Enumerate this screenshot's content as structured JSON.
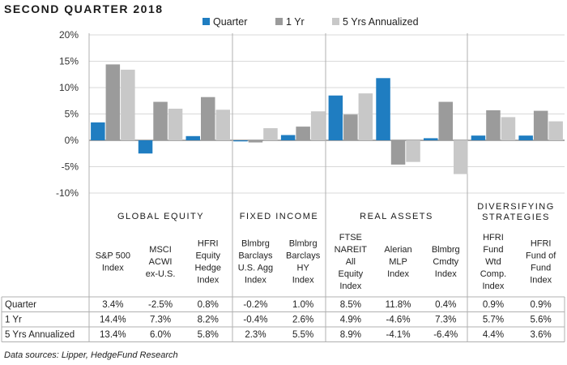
{
  "page_title": "SECOND QUARTER 2018",
  "source_note": "Data sources: Lipper, HedgeFund Research",
  "colors": {
    "quarter": "#1F7DC1",
    "one_yr": "#9B9B9B",
    "five_yr": "#C8C8C8",
    "grid": "#d9d9d9",
    "axis": "#555555"
  },
  "chart_data": {
    "type": "bar",
    "title": "SECOND QUARTER 2018",
    "y_ticks": [
      "20%",
      "15%",
      "10%",
      "5%",
      "0%",
      "-5%",
      "-10%"
    ],
    "ylim": [
      -10,
      20
    ],
    "legend_position": "top",
    "groups": [
      {
        "label": "GLOBAL EQUITY",
        "lines": [
          "GLOBAL EQUITY"
        ]
      },
      {
        "label": "FIXED INCOME",
        "lines": [
          "FIXED INCOME"
        ]
      },
      {
        "label": "REAL ASSETS",
        "lines": [
          "REAL ASSETS"
        ]
      },
      {
        "label": "DIVERSIFYING STRATEGIES",
        "lines": [
          "DIVERSIFYING",
          "STRATEGIES"
        ]
      }
    ],
    "categories": [
      {
        "label": "S&P 500 Index",
        "lines": [
          "S&P 500",
          "Index"
        ],
        "group": 0
      },
      {
        "label": "MSCI ACWI ex-U.S.",
        "lines": [
          "MSCI",
          "ACWI",
          "ex-U.S."
        ],
        "group": 0
      },
      {
        "label": "HFRI Equity Hedge Index",
        "lines": [
          "HFRI",
          "Equity",
          "Hedge",
          "Index"
        ],
        "group": 0
      },
      {
        "label": "Blmbrg Barclays U.S. Agg Index",
        "lines": [
          "Blmbrg",
          "Barclays",
          "U.S. Agg",
          "Index"
        ],
        "group": 1
      },
      {
        "label": "Blmbrg Barclays HY Index",
        "lines": [
          "Blmbrg",
          "Barclays",
          "HY",
          "Index"
        ],
        "group": 1
      },
      {
        "label": "FTSE NAREIT All Equity Index",
        "lines": [
          "FTSE",
          "NAREIT",
          "All",
          "Equity",
          "Index"
        ],
        "group": 2
      },
      {
        "label": "Alerian MLP Index",
        "lines": [
          "Alerian",
          "MLP",
          "Index"
        ],
        "group": 2
      },
      {
        "label": "Blmbrg Cmdty Index",
        "lines": [
          "Blmbrg",
          "Cmdty",
          "Index"
        ],
        "group": 2
      },
      {
        "label": "HFRI Fund Wtd Comp. Index",
        "lines": [
          "HFRI",
          "Fund",
          "Wtd",
          "Comp.",
          "Index"
        ],
        "group": 3
      },
      {
        "label": "HFRI Fund of Fund Index",
        "lines": [
          "HFRI",
          "Fund of",
          "Fund",
          "Index"
        ],
        "group": 3
      }
    ],
    "series": [
      {
        "name": "Quarter",
        "key": "quarter",
        "values": [
          3.4,
          -2.5,
          0.8,
          -0.2,
          1.0,
          8.5,
          11.8,
          0.4,
          0.9,
          0.9
        ],
        "labels": [
          "3.4%",
          "-2.5%",
          "0.8%",
          "-0.2%",
          "1.0%",
          "8.5%",
          "11.8%",
          "0.4%",
          "0.9%",
          "0.9%"
        ]
      },
      {
        "name": "1 Yr",
        "key": "one_yr",
        "values": [
          14.4,
          7.3,
          8.2,
          -0.4,
          2.6,
          4.9,
          -4.6,
          7.3,
          5.7,
          5.6
        ],
        "labels": [
          "14.4%",
          "7.3%",
          "8.2%",
          "-0.4%",
          "2.6%",
          "4.9%",
          "-4.6%",
          "7.3%",
          "5.7%",
          "5.6%"
        ]
      },
      {
        "name": "5 Yrs Annualized",
        "key": "five_yr",
        "values": [
          13.4,
          6.0,
          5.8,
          2.3,
          5.5,
          8.9,
          -4.1,
          -6.4,
          4.4,
          3.6
        ],
        "labels": [
          "13.4%",
          "6.0%",
          "5.8%",
          "2.3%",
          "5.5%",
          "8.9%",
          "-4.1%",
          "-6.4%",
          "4.4%",
          "3.6%"
        ]
      }
    ]
  }
}
